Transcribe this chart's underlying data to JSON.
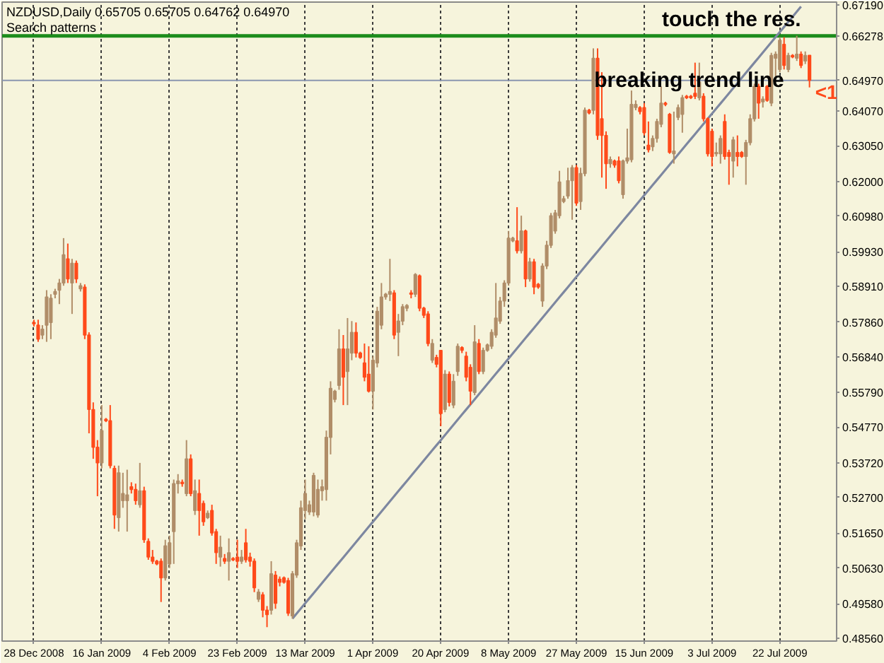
{
  "chart_data": {
    "type": "candlestick",
    "title": "NZDUSD,Daily 0.65705 0.65705 0.64762 0.64970",
    "subtitle": "Search patterns",
    "categories": [
      "28 Dec 2008",
      null,
      null,
      null,
      null,
      null,
      null,
      null,
      null,
      null,
      null,
      null,
      null,
      null,
      null,
      null,
      "16 Jan 2009",
      null,
      null,
      null,
      null,
      null,
      null,
      null,
      null,
      null,
      null,
      null,
      null,
      null,
      null,
      null,
      "4 Feb 2009",
      null,
      null,
      null,
      null,
      null,
      null,
      null,
      null,
      null,
      null,
      null,
      null,
      null,
      null,
      null,
      "23 Feb 2009",
      null,
      null,
      null,
      null,
      null,
      null,
      null,
      null,
      null,
      null,
      null,
      null,
      null,
      null,
      null,
      "13 Mar 2009",
      null,
      null,
      null,
      null,
      null,
      null,
      null,
      null,
      null,
      null,
      null,
      null,
      null,
      null,
      null,
      "1 Apr 2009",
      null,
      null,
      null,
      null,
      null,
      null,
      null,
      null,
      null,
      null,
      null,
      null,
      null,
      null,
      null,
      "20 Apr 2009",
      null,
      null,
      null,
      null,
      null,
      null,
      null,
      null,
      null,
      null,
      null,
      null,
      null,
      null,
      null,
      "8 May 2009",
      null,
      null,
      null,
      null,
      null,
      null,
      null,
      null,
      null,
      null,
      null,
      null,
      null,
      null,
      null,
      "27 May 2009",
      null,
      null,
      null,
      null,
      null,
      null,
      null,
      null,
      null,
      null,
      null,
      null,
      null,
      null,
      null,
      "15 Jun 2009",
      null,
      null,
      null,
      null,
      null,
      null,
      null,
      null,
      null,
      null,
      null,
      null,
      null,
      null,
      null,
      "3 Jul 2009",
      null,
      null,
      null,
      null,
      null,
      null,
      null,
      null,
      null,
      null,
      null,
      null,
      null,
      null,
      null,
      "22 Jul 2009",
      null,
      null,
      null,
      null,
      null,
      null,
      null
    ],
    "ohlc": [
      [
        0.5785,
        0.5793,
        0.5773,
        0.5781
      ],
      [
        0.5777,
        0.5793,
        0.5728,
        0.5736
      ],
      [
        0.5748,
        0.5777,
        0.5736,
        0.5765
      ],
      [
        0.5777,
        0.588,
        0.5728,
        0.586
      ],
      [
        0.5785,
        0.5868,
        0.5736,
        0.5856
      ],
      [
        0.5868,
        0.5884,
        0.5856,
        0.5876
      ],
      [
        0.588,
        0.5913,
        0.5839,
        0.5901
      ],
      [
        0.5901,
        0.6033,
        0.5893,
        0.5984
      ],
      [
        0.5972,
        0.6017,
        0.5901,
        0.5913
      ],
      [
        0.5901,
        0.5972,
        0.581,
        0.5959
      ],
      [
        0.5959,
        0.5967,
        0.5901,
        0.5913
      ],
      [
        0.5884,
        0.5901,
        0.5876,
        0.5893
      ],
      [
        0.5889,
        0.5897,
        0.5736,
        0.5748
      ],
      [
        0.5748,
        0.5756,
        0.5459,
        0.5529
      ],
      [
        0.5529,
        0.555,
        0.5384,
        0.5418
      ],
      [
        0.5418,
        0.5439,
        0.5274,
        0.5372
      ],
      [
        0.5372,
        0.5542,
        0.5356,
        0.5467
      ],
      [
        0.55,
        0.5504,
        0.5492,
        0.5496
      ],
      [
        0.5496,
        0.5542,
        0.5356,
        0.5364
      ],
      [
        0.5356,
        0.5364,
        0.5178,
        0.5219
      ],
      [
        0.5211,
        0.5364,
        0.517,
        0.5343
      ],
      [
        0.5261,
        0.5343,
        0.524,
        0.5282
      ],
      [
        0.5261,
        0.5352,
        0.517,
        0.5278
      ],
      [
        0.5302,
        0.5315,
        0.5282,
        0.5294
      ],
      [
        0.5294,
        0.5311,
        0.5249,
        0.5261
      ],
      [
        0.5249,
        0.5372,
        0.524,
        0.529
      ],
      [
        0.529,
        0.5302,
        0.5137,
        0.5146
      ],
      [
        0.5141,
        0.515,
        0.5087,
        0.5095
      ],
      [
        0.5095,
        0.5116,
        0.5075,
        0.5083
      ],
      [
        0.5083,
        0.5087,
        0.5071,
        0.5075
      ],
      [
        0.5083,
        0.5091,
        0.4963,
        0.5034
      ],
      [
        0.5034,
        0.5146,
        0.5026,
        0.5128
      ],
      [
        0.5075,
        0.5158,
        0.5063,
        0.5137
      ],
      [
        0.517,
        0.5323,
        0.5075,
        0.5311
      ],
      [
        0.5311,
        0.5339,
        0.5282,
        0.5319
      ],
      [
        0.5315,
        0.5323,
        0.5302,
        0.5311
      ],
      [
        0.5282,
        0.5439,
        0.5274,
        0.5384
      ],
      [
        0.5384,
        0.5397,
        0.5274,
        0.5282
      ],
      [
        0.5232,
        0.5323,
        0.5219,
        0.529
      ],
      [
        0.5282,
        0.5323,
        0.5158,
        0.5232
      ],
      [
        0.5253,
        0.5261,
        0.5187,
        0.5199
      ],
      [
        0.5211,
        0.5232,
        0.5207,
        0.5224
      ],
      [
        0.5232,
        0.5249,
        0.5158,
        0.5166
      ],
      [
        0.517,
        0.5178,
        0.5075,
        0.5108
      ],
      [
        0.5095,
        0.5158,
        0.5067,
        0.5124
      ],
      [
        0.5091,
        0.5104,
        0.5075,
        0.5083
      ],
      [
        0.5083,
        0.515,
        0.5026,
        0.5108
      ],
      [
        0.5091,
        0.5095,
        0.5083,
        0.5087
      ],
      [
        0.5095,
        0.5146,
        0.5063,
        0.5083
      ],
      [
        0.5083,
        0.5116,
        0.5075,
        0.5095
      ],
      [
        0.5137,
        0.5178,
        0.5079,
        0.5087
      ],
      [
        0.5095,
        0.5108,
        0.5067,
        0.5083
      ],
      [
        0.5083,
        0.5091,
        0.4992,
        0.5005
      ],
      [
        0.4971,
        0.5001,
        0.4963,
        0.4992
      ],
      [
        0.4984,
        0.4992,
        0.4918,
        0.4939
      ],
      [
        0.4939,
        0.4951,
        0.4889,
        0.4926
      ],
      [
        0.4939,
        0.5083,
        0.4926,
        0.5046
      ],
      [
        0.5042,
        0.5054,
        0.4943,
        0.4959
      ],
      [
        0.503,
        0.5038,
        0.5009,
        0.5021
      ],
      [
        0.5034,
        0.5038,
        0.5017,
        0.5021
      ],
      [
        0.5026,
        0.5034,
        0.4922,
        0.493
      ],
      [
        0.4922,
        0.5054,
        0.4914,
        0.5046
      ],
      [
        0.5042,
        0.5146,
        0.5034,
        0.5137
      ],
      [
        0.5128,
        0.5261,
        0.5116,
        0.524
      ],
      [
        0.5232,
        0.5323,
        0.5207,
        0.5282
      ],
      [
        0.5228,
        0.5261,
        0.5219,
        0.5249
      ],
      [
        0.5228,
        0.5343,
        0.5215,
        0.5335
      ],
      [
        0.5219,
        0.5323,
        0.5211,
        0.5294
      ],
      [
        0.529,
        0.5323,
        0.5261,
        0.5302
      ],
      [
        0.5294,
        0.5467,
        0.5261,
        0.5447
      ],
      [
        0.5447,
        0.5612,
        0.5397,
        0.5591
      ],
      [
        0.5559,
        0.5587,
        0.555,
        0.5583
      ],
      [
        0.56,
        0.5765,
        0.5587,
        0.5707
      ],
      [
        0.5707,
        0.5748,
        0.5542,
        0.5624
      ],
      [
        0.5641,
        0.5798,
        0.5542,
        0.5707
      ],
      [
        0.5695,
        0.5789,
        0.5674,
        0.5756
      ],
      [
        0.5756,
        0.5785,
        0.5682,
        0.5695
      ],
      [
        0.5695,
        0.5699,
        0.5678,
        0.5682
      ],
      [
        0.5666,
        0.5723,
        0.5612,
        0.5624
      ],
      [
        0.5633,
        0.5715,
        0.5579,
        0.5583
      ],
      [
        0.5583,
        0.5686,
        0.5529,
        0.5674
      ],
      [
        0.5666,
        0.5831,
        0.5653,
        0.5818
      ],
      [
        0.5777,
        0.5901,
        0.5765,
        0.586
      ],
      [
        0.586,
        0.5872,
        0.5852,
        0.5868
      ],
      [
        0.5868,
        0.5972,
        0.5848,
        0.5876
      ],
      [
        0.5872,
        0.588,
        0.5736,
        0.5748
      ],
      [
        0.5756,
        0.581,
        0.5686,
        0.5789
      ],
      [
        0.5789,
        0.5839,
        0.5777,
        0.5831
      ],
      [
        0.5827,
        0.5839,
        0.5818,
        0.5835
      ],
      [
        0.5872,
        0.588,
        0.5856,
        0.5868
      ],
      [
        0.5868,
        0.593,
        0.586,
        0.5926
      ],
      [
        0.5922,
        0.5926,
        0.5818,
        0.5827
      ],
      [
        0.5827,
        0.5831,
        0.5798,
        0.5806
      ],
      [
        0.581,
        0.5818,
        0.5715,
        0.5723
      ],
      [
        0.5674,
        0.5736,
        0.5666,
        0.5723
      ],
      [
        0.5682,
        0.569,
        0.5653,
        0.5662
      ],
      [
        0.5703,
        0.5703,
        0.548,
        0.5517
      ],
      [
        0.5529,
        0.5645,
        0.5521,
        0.5633
      ],
      [
        0.5633,
        0.5641,
        0.5538,
        0.555
      ],
      [
        0.5542,
        0.5633,
        0.5533,
        0.5612
      ],
      [
        0.5641,
        0.5723,
        0.5628,
        0.5715
      ],
      [
        0.5711,
        0.5715,
        0.5695,
        0.5703
      ],
      [
        0.5686,
        0.5699,
        0.5612,
        0.5624
      ],
      [
        0.5653,
        0.5662,
        0.5542,
        0.5583
      ],
      [
        0.5579,
        0.5777,
        0.5571,
        0.5728
      ],
      [
        0.5723,
        0.5736,
        0.5633,
        0.5641
      ],
      [
        0.5641,
        0.5711,
        0.5633,
        0.5703
      ],
      [
        0.5703,
        0.5723,
        0.5699,
        0.5719
      ],
      [
        0.5715,
        0.5765,
        0.5707,
        0.5756
      ],
      [
        0.5748,
        0.5901,
        0.574,
        0.5798
      ],
      [
        0.5789,
        0.586,
        0.5781,
        0.5848
      ],
      [
        0.5848,
        0.5909,
        0.5831,
        0.5901
      ],
      [
        0.5901,
        0.6054,
        0.5893,
        0.6033
      ],
      [
        0.6025,
        0.6037,
        0.6021,
        0.6033
      ],
      [
        0.6025,
        0.6124,
        0.5988,
        0.5996
      ],
      [
        0.5996,
        0.6099,
        0.5988,
        0.6054
      ],
      [
        0.6054,
        0.6058,
        0.5889,
        0.5913
      ],
      [
        0.5913,
        0.5975,
        0.5905,
        0.5963
      ],
      [
        0.5963,
        0.5972,
        0.5868,
        0.5889
      ],
      [
        0.5897,
        0.5901,
        0.5884,
        0.5889
      ],
      [
        0.5848,
        0.5959,
        0.5831,
        0.5951
      ],
      [
        0.5951,
        0.6025,
        0.5942,
        0.6012
      ],
      [
        0.6012,
        0.6107,
        0.6004,
        0.6099
      ],
      [
        0.6054,
        0.6116,
        0.6046,
        0.6107
      ],
      [
        0.6099,
        0.6231,
        0.6091,
        0.6198
      ],
      [
        0.6141,
        0.6157,
        0.6136,
        0.6149
      ],
      [
        0.6157,
        0.624,
        0.6149,
        0.6202
      ],
      [
        0.6202,
        0.6248,
        0.6087,
        0.624
      ],
      [
        0.624,
        0.6248,
        0.6128,
        0.6136
      ],
      [
        0.6141,
        0.624,
        0.6116,
        0.6223
      ],
      [
        0.6223,
        0.6417,
        0.6215,
        0.6409
      ],
      [
        0.6409,
        0.6413,
        0.6397,
        0.6401
      ],
      [
        0.6409,
        0.6591,
        0.6397,
        0.6562
      ],
      [
        0.6562,
        0.6591,
        0.6322,
        0.6335
      ],
      [
        0.6384,
        0.6521,
        0.6211,
        0.6335
      ],
      [
        0.6335,
        0.6347,
        0.6178,
        0.6252
      ],
      [
        0.6252,
        0.6273,
        0.624,
        0.6264
      ],
      [
        0.626,
        0.6264,
        0.624,
        0.6248
      ],
      [
        0.626,
        0.6273,
        0.6194,
        0.6202
      ],
      [
        0.6161,
        0.6264,
        0.6149,
        0.626
      ],
      [
        0.626,
        0.6355,
        0.6252,
        0.6269
      ],
      [
        0.6264,
        0.6467,
        0.6256,
        0.6426
      ],
      [
        0.6417,
        0.6438,
        0.6409,
        0.6426
      ],
      [
        0.6417,
        0.6421,
        0.6397,
        0.6405
      ],
      [
        0.6417,
        0.643,
        0.6335,
        0.6343
      ],
      [
        0.6306,
        0.6376,
        0.6285,
        0.6293
      ],
      [
        0.6302,
        0.6335,
        0.6289,
        0.6326
      ],
      [
        0.6326,
        0.6384,
        0.6314,
        0.6376
      ],
      [
        0.6368,
        0.6479,
        0.6359,
        0.643
      ],
      [
        0.643,
        0.6434,
        0.6421,
        0.6426
      ],
      [
        0.6397,
        0.6401,
        0.6281,
        0.6285
      ],
      [
        0.6281,
        0.6405,
        0.6252,
        0.6289
      ],
      [
        0.6388,
        0.6426,
        0.638,
        0.6417
      ],
      [
        0.6397,
        0.6454,
        0.6343,
        0.6446
      ],
      [
        0.645,
        0.6454,
        0.6442,
        0.6446
      ],
      [
        0.645,
        0.6454,
        0.6442,
        0.6446
      ],
      [
        0.6459,
        0.6549,
        0.6442,
        0.645
      ],
      [
        0.6446,
        0.6549,
        0.6438,
        0.6492
      ],
      [
        0.645,
        0.6459,
        0.6376,
        0.6384
      ],
      [
        0.6384,
        0.6388,
        0.6273,
        0.6281
      ],
      [
        0.6347,
        0.6355,
        0.6244,
        0.6273
      ],
      [
        0.6281,
        0.6314,
        0.6273,
        0.6285
      ],
      [
        0.6281,
        0.6335,
        0.6252,
        0.6326
      ],
      [
        0.6376,
        0.6397,
        0.6264,
        0.6273
      ],
      [
        0.6285,
        0.6293,
        0.619,
        0.6273
      ],
      [
        0.626,
        0.6331,
        0.6211,
        0.6322
      ],
      [
        0.6285,
        0.6335,
        0.6244,
        0.6273
      ],
      [
        0.6285,
        0.6289,
        0.6269,
        0.6273
      ],
      [
        0.6273,
        0.6322,
        0.619,
        0.6314
      ],
      [
        0.6314,
        0.6397,
        0.6306,
        0.6384
      ],
      [
        0.6384,
        0.6487,
        0.6376,
        0.6479
      ],
      [
        0.6479,
        0.6487,
        0.6384,
        0.643
      ],
      [
        0.6434,
        0.645,
        0.6417,
        0.6442
      ],
      [
        0.6479,
        0.6483,
        0.6434,
        0.6438
      ],
      [
        0.643,
        0.6578,
        0.6421,
        0.657
      ],
      [
        0.6562,
        0.6582,
        0.6508,
        0.6574
      ],
      [
        0.6529,
        0.6624,
        0.6521,
        0.6615
      ],
      [
        0.6603,
        0.6624,
        0.6529,
        0.6541
      ],
      [
        0.6529,
        0.6578,
        0.6521,
        0.657
      ],
      [
        0.657,
        0.6574,
        0.6562,
        0.6566
      ],
      [
        0.6562,
        0.6628,
        0.6554,
        0.6574
      ],
      [
        0.6574,
        0.6582,
        0.6533,
        0.6541
      ],
      [
        0.6554,
        0.6582,
        0.6545,
        0.657
      ],
      [
        0.65705,
        0.65705,
        0.64762,
        0.6497
      ]
    ],
    "colors": [
      "#ff4a1a",
      "#ff4a1a",
      "#b08d68",
      "#b08d68",
      "#b08d68",
      "#b08d68",
      "#b08d68",
      "#b08d68",
      "#ff4a1a",
      "#b08d68",
      "#ff4a1a",
      "#b08d68",
      "#ff4a1a",
      "#ff4a1a",
      "#ff4a1a",
      "#ff4a1a",
      "#b08d68",
      "#ff4a1a",
      "#ff4a1a",
      "#ff4a1a",
      "#b08d68",
      "#b08d68",
      "#b08d68",
      "#ff4a1a",
      "#ff4a1a",
      "#b08d68",
      "#ff4a1a",
      "#ff4a1a",
      "#ff4a1a",
      "#ff4a1a",
      "#ff4a1a",
      "#b08d68",
      "#b08d68",
      "#b08d68",
      "#b08d68",
      "#ff4a1a",
      "#b08d68",
      "#ff4a1a",
      "#b08d68",
      "#ff4a1a",
      "#ff4a1a",
      "#b08d68",
      "#ff4a1a",
      "#ff4a1a",
      "#b08d68",
      "#ff4a1a",
      "#b08d68",
      "#ff4a1a",
      "#ff4a1a",
      "#b08d68",
      "#ff4a1a",
      "#ff4a1a",
      "#ff4a1a",
      "#b08d68",
      "#ff4a1a",
      "#ff4a1a",
      "#b08d68",
      "#ff4a1a",
      "#ff4a1a",
      "#ff4a1a",
      "#ff4a1a",
      "#b08d68",
      "#b08d68",
      "#b08d68",
      "#b08d68",
      "#b08d68",
      "#b08d68",
      "#b08d68",
      "#b08d68",
      "#b08d68",
      "#b08d68",
      "#b08d68",
      "#b08d68",
      "#ff4a1a",
      "#b08d68",
      "#b08d68",
      "#ff4a1a",
      "#ff4a1a",
      "#ff4a1a",
      "#ff4a1a",
      "#b08d68",
      "#b08d68",
      "#b08d68",
      "#b08d68",
      "#b08d68",
      "#ff4a1a",
      "#b08d68",
      "#b08d68",
      "#b08d68",
      "#ff4a1a",
      "#b08d68",
      "#ff4a1a",
      "#ff4a1a",
      "#ff4a1a",
      "#b08d68",
      "#ff4a1a",
      "#ff4a1a",
      "#b08d68",
      "#ff4a1a",
      "#b08d68",
      "#b08d68",
      "#ff4a1a",
      "#ff4a1a",
      "#ff4a1a",
      "#b08d68",
      "#ff4a1a",
      "#b08d68",
      "#b08d68",
      "#b08d68",
      "#b08d68",
      "#b08d68",
      "#b08d68",
      "#b08d68",
      "#b08d68",
      "#ff4a1a",
      "#b08d68",
      "#ff4a1a",
      "#b08d68",
      "#ff4a1a",
      "#ff4a1a",
      "#b08d68",
      "#b08d68",
      "#b08d68",
      "#b08d68",
      "#b08d68",
      "#b08d68",
      "#b08d68",
      "#b08d68",
      "#ff4a1a",
      "#b08d68",
      "#b08d68",
      "#ff4a1a",
      "#b08d68",
      "#ff4a1a",
      "#ff4a1a",
      "#ff4a1a",
      "#b08d68",
      "#ff4a1a",
      "#ff4a1a",
      "#b08d68",
      "#b08d68",
      "#b08d68",
      "#b08d68",
      "#ff4a1a",
      "#ff4a1a",
      "#ff4a1a",
      "#b08d68",
      "#b08d68",
      "#b08d68",
      "#ff4a1a",
      "#ff4a1a",
      "#b08d68",
      "#b08d68",
      "#b08d68",
      "#ff4a1a",
      "#ff4a1a",
      "#ff4a1a",
      "#b08d68",
      "#ff4a1a",
      "#ff4a1a",
      "#ff4a1a",
      "#b08d68",
      "#b08d68",
      "#ff4a1a",
      "#ff4a1a",
      "#b08d68",
      "#ff4a1a",
      "#ff4a1a",
      "#b08d68",
      "#b08d68",
      "#b08d68",
      "#ff4a1a",
      "#b08d68",
      "#ff4a1a",
      "#b08d68",
      "#b08d68",
      "#b08d68",
      "#ff4a1a",
      "#b08d68",
      "#ff4a1a",
      "#b08d68",
      "#ff4a1a",
      "#b08d68",
      "#ff4a1a"
    ],
    "series": [
      {
        "type": "line",
        "color": "#7d87a0",
        "values": [
          null,
          null,
          null,
          null,
          null,
          null,
          null,
          null,
          null,
          null,
          null,
          null,
          null,
          null,
          null,
          null,
          null,
          null,
          null,
          null,
          null,
          null,
          null,
          null,
          null,
          null,
          null,
          null,
          null,
          null,
          null,
          null,
          null,
          null,
          null,
          null,
          null,
          null,
          null,
          null,
          null,
          null,
          null,
          null,
          null,
          null,
          null,
          null,
          null,
          null,
          null,
          null,
          null,
          null,
          null,
          null,
          null,
          null,
          null,
          null,
          null,
          0.4914,
          0.4929,
          0.4944,
          0.4959,
          0.4974,
          0.4989,
          0.5004,
          0.5019,
          0.5034,
          0.5049,
          0.5064,
          0.5079,
          0.5094,
          0.5109,
          0.5124,
          0.5139,
          0.5154,
          0.5169,
          0.5184,
          0.5199,
          0.5214,
          0.5229,
          0.5244,
          0.5259,
          0.5274,
          0.5289,
          0.5304,
          0.5319,
          0.5334,
          0.5349,
          0.5364,
          0.5379,
          0.5394,
          0.5409,
          0.5424,
          0.5439,
          0.5454,
          0.5469,
          0.5484,
          0.5499,
          0.5514,
          0.5529,
          0.5544,
          0.5559,
          0.5574,
          0.5589,
          0.5604,
          0.5619,
          0.5634,
          0.5649,
          0.5664,
          0.5679,
          0.5694,
          0.5709,
          0.5724,
          0.5739,
          0.5754,
          0.5769,
          0.5784,
          0.5799,
          0.5814,
          0.5829,
          0.5844,
          0.5859,
          0.5874,
          0.5889,
          0.5904,
          0.5919,
          0.5934,
          0.5949,
          0.5964,
          0.5979,
          0.5994,
          0.6009,
          0.6024,
          0.6039,
          0.6054,
          0.6069,
          0.6084,
          0.6099,
          0.6114,
          0.6129,
          0.6144,
          0.6159,
          0.6174,
          0.6189,
          0.6204,
          0.6219,
          0.6234,
          0.6249,
          0.6264,
          0.6279,
          0.6294,
          0.6309,
          0.6324,
          0.6339,
          0.6354,
          0.6369,
          0.6384,
          0.6399,
          0.6414,
          0.6429,
          0.6444,
          0.6459,
          0.6474,
          0.6489,
          0.6504,
          0.6519,
          0.6534,
          0.6549,
          0.6564,
          0.6579,
          0.6594,
          0.6609,
          0.6624,
          0.6639,
          0.6654,
          0.6669,
          0.6684,
          0.6699,
          0.6714,
          null,
          null
        ]
      }
    ],
    "ylim": [
      0.4848,
      0.6727
    ],
    "yticks": [
      {
        "value": 0.6719,
        "label": "0.67190"
      },
      {
        "value": 0.6407,
        "label": "0.64070"
      },
      {
        "value": 0.6305,
        "label": "0.63050"
      },
      {
        "value": 0.62,
        "label": "0.62000"
      },
      {
        "value": 0.6098,
        "label": "0.60980"
      },
      {
        "value": 0.5993,
        "label": "0.59930"
      },
      {
        "value": 0.5891,
        "label": "0.58910"
      },
      {
        "value": 0.5786,
        "label": "0.57860"
      },
      {
        "value": 0.5684,
        "label": "0.56840"
      },
      {
        "value": 0.5579,
        "label": "0.55790"
      },
      {
        "value": 0.5477,
        "label": "0.54770"
      },
      {
        "value": 0.5372,
        "label": "0.53720"
      },
      {
        "value": 0.527,
        "label": "0.52700"
      },
      {
        "value": 0.5165,
        "label": "0.51650"
      },
      {
        "value": 0.5063,
        "label": "0.50630"
      },
      {
        "value": 0.4958,
        "label": "0.49580"
      },
      {
        "value": 0.4856,
        "label": "0.48560"
      }
    ],
    "grid": "x",
    "ref_lines": [
      {
        "axis": "y",
        "value": 0.66278,
        "label": "0.66278",
        "color": "#1c8c1c"
      },
      {
        "axis": "y",
        "value": 0.6497,
        "label": "0.64970",
        "color": "#8a96b0"
      }
    ],
    "annotations": [
      "touch the res.",
      "breaking trend line",
      "<1"
    ]
  }
}
